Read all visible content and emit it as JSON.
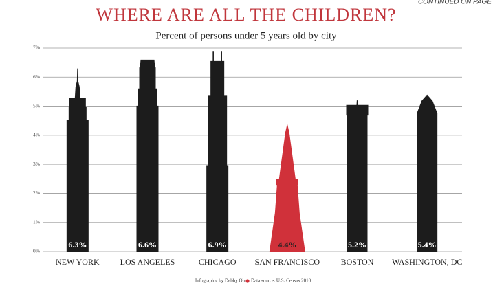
{
  "page_note": "CONTINUED ON PAGE",
  "chart_data": {
    "type": "bar",
    "title": "WHERE ARE ALL THE CHILDREN?",
    "subtitle": "Percent of persons under 5 years old by city",
    "categories": [
      "NEW YORK",
      "LOS ANGELES",
      "CHICAGO",
      "SAN FRANCISCO",
      "BOSTON",
      "WASHINGTON, DC"
    ],
    "values": [
      6.3,
      6.6,
      6.9,
      4.4,
      5.2,
      5.4
    ],
    "value_labels": [
      "6.3%",
      "6.6%",
      "6.9%",
      "4.4%",
      "5.2%",
      "5.4%"
    ],
    "colors": [
      "#1c1c1c",
      "#1c1c1c",
      "#1c1c1c",
      "#d0313a",
      "#1c1c1c",
      "#1c1c1c"
    ],
    "ylim": [
      0,
      7
    ],
    "yticks": [
      {
        "value": 0,
        "label": "0%"
      },
      {
        "value": 1,
        "label": "1%"
      },
      {
        "value": 2,
        "label": "2%"
      },
      {
        "value": 3,
        "label": "3%"
      },
      {
        "value": 4,
        "label": "4%"
      },
      {
        "value": 5,
        "label": "5%"
      },
      {
        "value": 6,
        "label": "6%"
      },
      {
        "value": 7,
        "label": "7%"
      }
    ],
    "grid": true,
    "credit": "Infographic by Debby Oh",
    "source": "Data source: U.S. Census 2010"
  }
}
